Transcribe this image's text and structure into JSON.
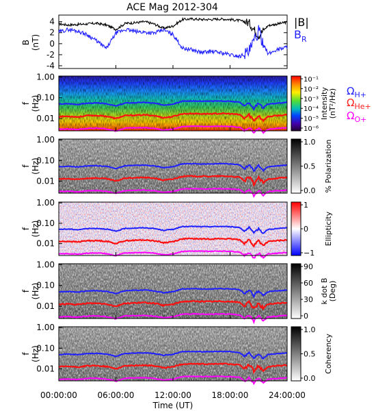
{
  "chart_data": [
    {
      "type": "line",
      "title": "ACE Mag 2012-304",
      "ylabel": "B",
      "yunits": "(nT)",
      "yticks": [
        "4",
        "2",
        "0",
        "-2",
        "-4"
      ],
      "ylim": [
        -4.5,
        5.2
      ],
      "xlim": [
        0,
        24
      ],
      "series": [
        {
          "name": "|B|",
          "color": "#000000",
          "x": [
            0,
            1,
            2,
            3,
            4,
            5,
            6,
            7,
            8,
            9,
            10,
            11,
            12,
            13,
            14,
            15,
            16,
            17,
            18,
            19,
            20,
            21,
            22,
            23,
            24
          ],
          "values": [
            3.6,
            3.4,
            3.5,
            3.6,
            3.7,
            3.4,
            2.6,
            3.7,
            3.8,
            4.0,
            3.6,
            2.8,
            3.2,
            4.4,
            4.5,
            4.4,
            4.4,
            4.5,
            4.4,
            4.2,
            3.8,
            1.5,
            3.3,
            3.6,
            3.9
          ]
        },
        {
          "name": "B",
          "subscript": "R",
          "color": "#1f1fff",
          "x": [
            0,
            1,
            2,
            3,
            4,
            5,
            6,
            7,
            8,
            9,
            10,
            11,
            12,
            13,
            14,
            15,
            16,
            17,
            18,
            19,
            20,
            21,
            22,
            23,
            24
          ],
          "values": [
            2.1,
            2.6,
            2.3,
            1.6,
            0.5,
            -0.9,
            1.9,
            2.6,
            2.2,
            2.1,
            1.9,
            2.5,
            1.7,
            -0.8,
            -1.1,
            -1.6,
            -1.4,
            -1.6,
            -2.0,
            -2.3,
            -1.5,
            2.2,
            -1.9,
            -1.0,
            -0.6
          ]
        }
      ]
    },
    {
      "type": "heatmap",
      "panel": "intensity",
      "ylabel": "f",
      "yunits": "(Hz)",
      "yticks": [
        "1.00",
        "0.10",
        "0.01"
      ],
      "colorbar": {
        "ticks": [
          "10⁻¹",
          "10⁻²",
          "10⁻³",
          "10⁻⁴",
          "10⁻⁵",
          "10⁻⁶"
        ],
        "label": "Intensity",
        "units": "(nT²/Hz)",
        "colors": [
          "#ff0000",
          "#ff8800",
          "#ffee00",
          "#55dd33",
          "#00bbbb",
          "#0044ff",
          "#4400aa",
          "#220033"
        ]
      }
    },
    {
      "type": "heatmap",
      "panel": "polarization",
      "ylabel": "f",
      "yunits": "(Hz)",
      "yticks": [
        "1.00",
        "0.10",
        "0.01"
      ],
      "colorbar": {
        "ticks": [
          "1.0",
          "0.5",
          "0.0"
        ],
        "label": "% Polarization",
        "colors": [
          "#000000",
          "#ffffff"
        ]
      }
    },
    {
      "type": "heatmap",
      "panel": "ellipticity",
      "ylabel": "f",
      "yunits": "(Hz)",
      "yticks": [
        "1.00",
        "0.10",
        "0.01"
      ],
      "colorbar": {
        "ticks": [
          "1",
          "0",
          "−1"
        ],
        "label": "Ellipticity",
        "colors": [
          "#ff0000",
          "#ffffff",
          "#0000ff"
        ]
      }
    },
    {
      "type": "heatmap",
      "panel": "kdotb",
      "ylabel": "f",
      "yunits": "(Hz)",
      "yticks": [
        "1.00",
        "0.10",
        "0.01"
      ],
      "colorbar": {
        "ticks": [
          "90",
          "60",
          "30",
          "0"
        ],
        "label": "k dot B",
        "units": "(Deg)",
        "colors": [
          "#000000",
          "#ffffff"
        ]
      }
    },
    {
      "type": "heatmap",
      "panel": "coherency",
      "ylabel": "f",
      "yunits": "(Hz)",
      "yticks": [
        "1.00",
        "0.10",
        "0.01"
      ],
      "colorbar": {
        "ticks": [
          "1.0",
          "0.5",
          "0.0"
        ],
        "label": "Coherency",
        "colors": [
          "#000000",
          "#ffffff"
        ]
      }
    }
  ],
  "gyrofrequency_legend": [
    {
      "symbol": "Ω",
      "subscript": "H+",
      "color": "#1f1fff"
    },
    {
      "symbol": "Ω",
      "subscript": "He+",
      "color": "#ff2020"
    },
    {
      "symbol": "Ω",
      "subscript": "O+",
      "color": "#ff00ff"
    }
  ],
  "gyrofrequency_lines": {
    "x": [
      0,
      1,
      2,
      3,
      4,
      5,
      6,
      7,
      8,
      9,
      10,
      11,
      12,
      13,
      14,
      15,
      16,
      17,
      18,
      19,
      19.5,
      20,
      20.5,
      21,
      21.5,
      22,
      23,
      24
    ],
    "H+": [
      0.05,
      0.052,
      0.048,
      0.055,
      0.056,
      0.052,
      0.04,
      0.056,
      0.058,
      0.06,
      0.055,
      0.045,
      0.05,
      0.068,
      0.07,
      0.068,
      0.068,
      0.07,
      0.068,
      0.062,
      0.04,
      0.06,
      0.03,
      0.055,
      0.032,
      0.05,
      0.055,
      0.06
    ],
    "He+": [
      0.0125,
      0.013,
      0.012,
      0.014,
      0.014,
      0.013,
      0.01,
      0.014,
      0.0145,
      0.015,
      0.014,
      0.011,
      0.0125,
      0.017,
      0.0175,
      0.017,
      0.017,
      0.0175,
      0.017,
      0.0155,
      0.01,
      0.015,
      0.0075,
      0.014,
      0.008,
      0.0125,
      0.014,
      0.015
    ],
    "O+": [
      0.0031,
      0.0032,
      0.003,
      0.0034,
      0.0035,
      0.0032,
      0.0025,
      0.0035,
      0.0036,
      0.0037,
      0.0034,
      0.0028,
      0.0031,
      0.0042,
      0.0043,
      0.0042,
      0.0042,
      0.0043,
      0.0042,
      0.0039,
      0.0025,
      0.0037,
      0.0019,
      0.0034,
      0.002,
      0.0031,
      0.0034,
      0.0037
    ]
  },
  "xaxis": {
    "ticks": [
      "00:00:00",
      "06:00:00",
      "12:00:00",
      "18:00:00",
      "24:00:00"
    ],
    "tick_hours": [
      0,
      6,
      12,
      18,
      24
    ],
    "label": "Time (UT)"
  }
}
